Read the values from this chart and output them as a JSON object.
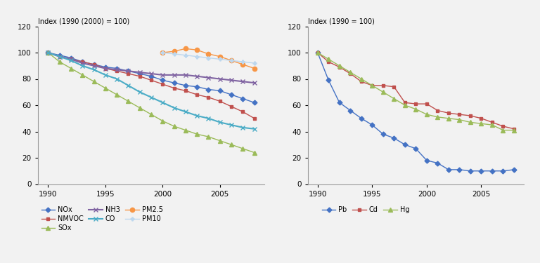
{
  "years": [
    1990,
    1991,
    1992,
    1993,
    1994,
    1995,
    1996,
    1997,
    1998,
    1999,
    2000,
    2001,
    2002,
    2003,
    2004,
    2005,
    2006,
    2007,
    2008
  ],
  "left_title": "Index (1990 (2000) = 100)",
  "right_title": "Index (1990 = 100)",
  "left_ylim": [
    0,
    120
  ],
  "right_ylim": [
    0,
    120
  ],
  "left_yticks": [
    0,
    20,
    40,
    60,
    80,
    100,
    120
  ],
  "right_yticks": [
    0,
    20,
    40,
    60,
    80,
    100,
    120
  ],
  "left_xticks": [
    1990,
    1995,
    2000,
    2005
  ],
  "right_xticks": [
    1990,
    1995,
    2000,
    2005
  ],
  "NOx": [
    100,
    98,
    96,
    93,
    91,
    89,
    88,
    86,
    84,
    82,
    79,
    77,
    75,
    74,
    72,
    71,
    68,
    65,
    62
  ],
  "NMVOC": [
    100,
    97,
    95,
    93,
    91,
    88,
    86,
    84,
    82,
    79,
    76,
    73,
    71,
    68,
    66,
    63,
    59,
    55,
    50
  ],
  "SOx": [
    100,
    93,
    88,
    83,
    78,
    73,
    68,
    63,
    58,
    53,
    48,
    44,
    41,
    38,
    36,
    33,
    30,
    27,
    24
  ],
  "NH3": [
    100,
    97,
    95,
    92,
    90,
    88,
    87,
    86,
    85,
    84,
    83,
    83,
    83,
    82,
    81,
    80,
    79,
    78,
    77
  ],
  "CO": [
    100,
    97,
    94,
    90,
    87,
    83,
    80,
    75,
    70,
    66,
    62,
    58,
    55,
    52,
    50,
    47,
    45,
    43,
    42
  ],
  "PM2_5": [
    null,
    null,
    null,
    null,
    null,
    null,
    null,
    null,
    null,
    null,
    100,
    101,
    103,
    102,
    99,
    97,
    94,
    91,
    88
  ],
  "PM10": [
    null,
    null,
    null,
    null,
    null,
    null,
    null,
    null,
    null,
    null,
    100,
    99,
    98,
    97,
    96,
    95,
    94,
    93,
    92
  ],
  "Pb": [
    100,
    79,
    62,
    56,
    50,
    45,
    38,
    35,
    30,
    27,
    18,
    16,
    11,
    11,
    10,
    10,
    10,
    10,
    11
  ],
  "Cd": [
    100,
    93,
    89,
    84,
    78,
    75,
    75,
    74,
    62,
    61,
    61,
    56,
    54,
    53,
    52,
    50,
    47,
    44,
    42
  ],
  "Hg": [
    100,
    95,
    90,
    85,
    80,
    75,
    70,
    65,
    60,
    57,
    53,
    51,
    50,
    49,
    47,
    46,
    45,
    41,
    41
  ],
  "NOx_color": "#4472C4",
  "NMVOC_color": "#C0504D",
  "SOx_color": "#9BBB59",
  "NH3_color": "#8064A2",
  "CO_color": "#4BACC6",
  "PM2_5_color": "#F79646",
  "PM10_color": "#BDD7EE",
  "Pb_color": "#4472C4",
  "Cd_color": "#C0504D",
  "Hg_color": "#9BBB59",
  "bg_color": "#F2F2F2"
}
